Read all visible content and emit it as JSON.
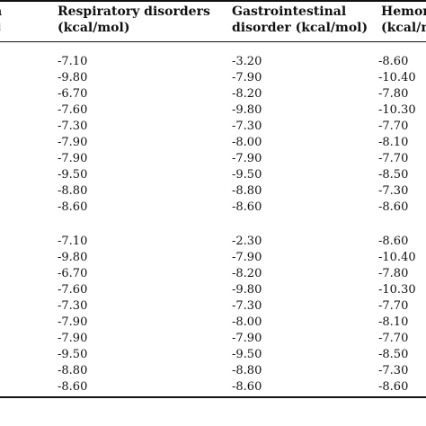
{
  "table": {
    "headers": {
      "stub_fragment": "n",
      "stub_sub_fragment": "l",
      "respiratory": [
        "Respiratory disorders",
        "(kcal/mol)"
      ],
      "gastro": [
        "Gastrointestinal",
        "disorder (kcal/mol)"
      ],
      "hemo": [
        "Hemorr",
        "(kcal/m"
      ]
    },
    "groups": [
      {
        "rows": [
          [
            "-7.10",
            "-3.20",
            "-8.60"
          ],
          [
            "-9.80",
            "-7.90",
            "-10.40"
          ],
          [
            "-6.70",
            "-8.20",
            "-7.80"
          ],
          [
            "-7.60",
            "-9.80",
            "-10.30"
          ],
          [
            "-7.30",
            "-7.30",
            "-7.70"
          ],
          [
            "-7.90",
            "-8.00",
            "-8.10"
          ],
          [
            "-7.90",
            "-7.90",
            "-7.70"
          ],
          [
            "-9.50",
            "-9.50",
            "-8.50"
          ],
          [
            "-8.80",
            "-8.80",
            "-7.30"
          ],
          [
            "-8.60",
            "-8.60",
            "-8.60"
          ]
        ]
      },
      {
        "rows": [
          [
            "-7.10",
            "-2.30",
            "-8.60"
          ],
          [
            "-9.80",
            "-7.90",
            "-10.40"
          ],
          [
            "-6.70",
            "-8.20",
            "-7.80"
          ],
          [
            "-7.60",
            "-9.80",
            "-10.30"
          ],
          [
            "-7.30",
            "-7.30",
            "-7.70"
          ],
          [
            "-7.90",
            "-8.00",
            "-8.10"
          ],
          [
            "-7.90",
            "-7.90",
            "-7.70"
          ],
          [
            "-9.50",
            "-9.50",
            "-8.50"
          ],
          [
            "-8.80",
            "-8.80",
            "-7.30"
          ],
          [
            "-8.60",
            "-8.60",
            "-8.60"
          ]
        ]
      }
    ]
  }
}
